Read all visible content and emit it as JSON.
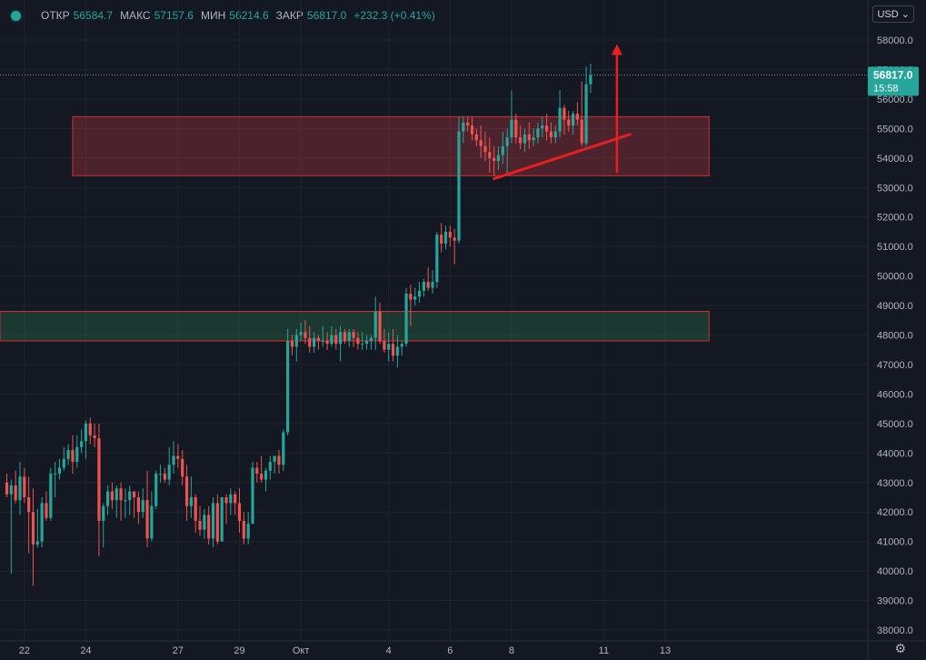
{
  "header": {
    "open_label": "ОТКР",
    "open_value": "56584.7",
    "high_label": "МАКС",
    "high_value": "57157.6",
    "low_label": "МИН",
    "low_value": "56214.6",
    "close_label": "ЗАКР",
    "close_value": "56817.0",
    "change": "+232.3 (+0.41%)"
  },
  "currency": "USD",
  "last_price": "56817.0",
  "countdown": "15:58",
  "icons": {
    "status": "status-dot-icon",
    "settings": "gear-icon",
    "dropdown": "chevron-down-icon"
  },
  "colors": {
    "up": "#26a69a",
    "down": "#ef5350",
    "bg": "#141823",
    "annotation": "#e91e1e"
  },
  "chart_data": {
    "type": "candlestick",
    "ylim": [
      37800,
      58500
    ],
    "yticks": [
      38000,
      39000,
      40000,
      41000,
      42000,
      43000,
      44000,
      45000,
      46000,
      47000,
      48000,
      49000,
      50000,
      51000,
      52000,
      53000,
      54000,
      55000,
      56000,
      57000,
      58000
    ],
    "xticks": [
      {
        "label": "22",
        "bar": 4
      },
      {
        "label": "24",
        "bar": 18
      },
      {
        "label": "27",
        "bar": 39
      },
      {
        "label": "29",
        "bar": 53
      },
      {
        "label": "Окт",
        "bar": 67
      },
      {
        "label": "4",
        "bar": 87
      },
      {
        "label": "6",
        "bar": 101
      },
      {
        "label": "8",
        "bar": 115
      },
      {
        "label": "11",
        "bar": 136
      },
      {
        "label": "13",
        "bar": 150
      }
    ],
    "zones": [
      {
        "from": 53400,
        "to": 55400,
        "start_bar": 15,
        "end_bar": 160,
        "color": "#c0393f"
      },
      {
        "from": 47800,
        "to": 48800,
        "start_bar": -2,
        "end_bar": 160,
        "color": "#2e7d4f"
      }
    ],
    "trendline": {
      "bar1": 111,
      "price1": 53300,
      "bar2": 142,
      "price2": 54800
    },
    "arrow": {
      "bar": 139,
      "from": 53500,
      "to": 57800
    },
    "candles": [
      [
        43000,
        43300,
        42500,
        42600
      ],
      [
        42600,
        43100,
        39900,
        42900
      ],
      [
        42900,
        43400,
        42300,
        42400
      ],
      [
        42400,
        43700,
        41900,
        43200
      ],
      [
        43200,
        43500,
        42300,
        42500
      ],
      [
        42500,
        43200,
        40600,
        42000
      ],
      [
        42000,
        42800,
        39500,
        40900
      ],
      [
        40900,
        42100,
        40800,
        41000
      ],
      [
        41000,
        42500,
        40800,
        42300
      ],
      [
        42300,
        42700,
        41700,
        41800
      ],
      [
        41800,
        43500,
        41700,
        43300
      ],
      [
        43300,
        43700,
        42500,
        43300
      ],
      [
        43300,
        43800,
        43100,
        43500
      ],
      [
        43500,
        44200,
        43400,
        43800
      ],
      [
        43800,
        44300,
        43600,
        44100
      ],
      [
        44100,
        44600,
        43300,
        43700
      ],
      [
        43700,
        44600,
        43500,
        44200
      ],
      [
        44200,
        44800,
        44000,
        44400
      ],
      [
        44400,
        45100,
        43800,
        45000
      ],
      [
        45000,
        45200,
        44300,
        44600
      ],
      [
        44600,
        45000,
        44200,
        44500
      ],
      [
        44500,
        45000,
        40500,
        41700
      ],
      [
        41700,
        42300,
        40800,
        42200
      ],
      [
        42200,
        42900,
        41900,
        42700
      ],
      [
        42700,
        43000,
        42100,
        42400
      ],
      [
        42400,
        42900,
        41800,
        42800
      ],
      [
        42800,
        43000,
        41700,
        42400
      ],
      [
        42400,
        42800,
        41800,
        42400
      ],
      [
        42400,
        42900,
        41900,
        42700
      ],
      [
        42700,
        42700,
        41800,
        42500
      ],
      [
        42500,
        42700,
        41600,
        42000
      ],
      [
        42000,
        42800,
        41800,
        42400
      ],
      [
        42400,
        43400,
        40800,
        41100
      ],
      [
        41100,
        42700,
        41000,
        42200
      ],
      [
        42200,
        43400,
        42100,
        43300
      ],
      [
        43300,
        43600,
        43000,
        43300
      ],
      [
        43300,
        43500,
        43000,
        43100
      ],
      [
        43100,
        44200,
        42900,
        43600
      ],
      [
        43600,
        44400,
        43300,
        43900
      ],
      [
        43900,
        44300,
        43500,
        43800
      ],
      [
        43800,
        44100,
        42900,
        43200
      ],
      [
        43200,
        43600,
        41700,
        42200
      ],
      [
        42200,
        43200,
        41800,
        42500
      ],
      [
        42500,
        42600,
        41300,
        41700
      ],
      [
        41700,
        42200,
        41200,
        41400
      ],
      [
        41400,
        42100,
        41100,
        41900
      ],
      [
        41900,
        42200,
        40900,
        41100
      ],
      [
        41100,
        42500,
        40800,
        42300
      ],
      [
        42300,
        42600,
        40900,
        41000
      ],
      [
        41000,
        42500,
        41000,
        42500
      ],
      [
        42500,
        42600,
        41600,
        42300
      ],
      [
        42300,
        42800,
        41900,
        42600
      ],
      [
        42600,
        42700,
        41900,
        42300
      ],
      [
        42300,
        42800,
        41300,
        41700
      ],
      [
        41700,
        42000,
        40900,
        41100
      ],
      [
        41100,
        42000,
        40900,
        41600
      ],
      [
        41600,
        43700,
        41600,
        43500
      ],
      [
        43500,
        43700,
        43000,
        43300
      ],
      [
        43300,
        43900,
        43000,
        43100
      ],
      [
        43100,
        43500,
        42700,
        43400
      ],
      [
        43400,
        43900,
        43100,
        43700
      ],
      [
        43700,
        43900,
        43300,
        43900
      ],
      [
        43900,
        44100,
        43300,
        43600
      ],
      [
        43600,
        44800,
        43400,
        44700
      ],
      [
        44700,
        48200,
        44600,
        47800
      ],
      [
        47800,
        48000,
        47300,
        47600
      ],
      [
        47600,
        48200,
        47100,
        48000
      ],
      [
        48000,
        48400,
        47800,
        48100
      ],
      [
        48100,
        48500,
        47700,
        47900
      ],
      [
        47900,
        48300,
        47400,
        47600
      ],
      [
        47600,
        48100,
        47400,
        47900
      ],
      [
        47900,
        48000,
        47500,
        47800
      ],
      [
        47800,
        48300,
        47600,
        47800
      ],
      [
        47800,
        48100,
        47500,
        47700
      ],
      [
        47700,
        48300,
        47600,
        48000
      ],
      [
        48000,
        48200,
        47500,
        47700
      ],
      [
        47700,
        48300,
        47100,
        48100
      ],
      [
        48100,
        48200,
        47700,
        47800
      ],
      [
        47800,
        48200,
        47600,
        48100
      ],
      [
        48100,
        48200,
        47600,
        47900
      ],
      [
        47900,
        48100,
        47500,
        47700
      ],
      [
        47700,
        48100,
        47500,
        47700
      ],
      [
        47700,
        48000,
        47500,
        47800
      ],
      [
        47800,
        48000,
        47500,
        47900
      ],
      [
        47900,
        49300,
        47500,
        48800
      ],
      [
        48800,
        49100,
        47700,
        47800
      ],
      [
        47800,
        48200,
        47400,
        47500
      ],
      [
        47500,
        48100,
        47100,
        47700
      ],
      [
        47700,
        48200,
        47100,
        47300
      ],
      [
        47300,
        48000,
        46900,
        47600
      ],
      [
        47600,
        47800,
        47300,
        47700
      ],
      [
        47700,
        49600,
        47600,
        49400
      ],
      [
        49400,
        49700,
        48300,
        49200
      ],
      [
        49200,
        49600,
        49000,
        49300
      ],
      [
        49300,
        49800,
        49100,
        49500
      ],
      [
        49500,
        49900,
        49300,
        49800
      ],
      [
        49800,
        50300,
        49500,
        49600
      ],
      [
        49600,
        50200,
        49400,
        49800
      ],
      [
        49800,
        51500,
        49600,
        51400
      ],
      [
        51400,
        51800,
        50800,
        51100
      ],
      [
        51100,
        51700,
        50900,
        51500
      ],
      [
        51500,
        51700,
        51000,
        51300
      ],
      [
        51300,
        51600,
        50400,
        51200
      ],
      [
        51200,
        55400,
        51100,
        54900
      ],
      [
        54900,
        55400,
        54500,
        55200
      ],
      [
        55200,
        55400,
        54900,
        55100
      ],
      [
        55100,
        55400,
        54600,
        54800
      ],
      [
        54800,
        55000,
        54400,
        54600
      ],
      [
        54600,
        55100,
        54000,
        54400
      ],
      [
        54400,
        54900,
        53900,
        54200
      ],
      [
        54200,
        54700,
        53500,
        54000
      ],
      [
        54000,
        54400,
        53400,
        53900
      ],
      [
        53900,
        54400,
        53600,
        54100
      ],
      [
        54100,
        54900,
        53800,
        54400
      ],
      [
        54400,
        55000,
        53400,
        54700
      ],
      [
        54700,
        56300,
        54500,
        55300
      ],
      [
        55300,
        55500,
        54500,
        54700
      ],
      [
        54700,
        55100,
        54300,
        54500
      ],
      [
        54500,
        55000,
        54200,
        54800
      ],
      [
        54800,
        55200,
        54300,
        54600
      ],
      [
        54600,
        55000,
        54400,
        54700
      ],
      [
        54700,
        55200,
        54500,
        55000
      ],
      [
        55000,
        55400,
        54700,
        55100
      ],
      [
        55100,
        55500,
        54600,
        54900
      ],
      [
        54900,
        55200,
        54500,
        54700
      ],
      [
        54700,
        55100,
        54500,
        54900
      ],
      [
        54900,
        56300,
        54700,
        55700
      ],
      [
        55700,
        55800,
        54800,
        55300
      ],
      [
        55300,
        55600,
        54900,
        55100
      ],
      [
        55100,
        55600,
        54800,
        55500
      ],
      [
        55500,
        55900,
        55100,
        55300
      ],
      [
        55300,
        56600,
        54400,
        54500
      ],
      [
        54500,
        57100,
        54400,
        56500
      ],
      [
        56500,
        57200,
        56200,
        56800
      ]
    ]
  }
}
